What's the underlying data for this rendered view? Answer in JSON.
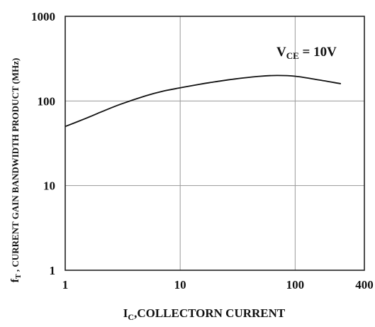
{
  "chart_data": {
    "type": "line",
    "title": "",
    "xlabel": {
      "main": "I",
      "sub": "C",
      "rest": ",COLLECTORN CURRENT"
    },
    "ylabel": {
      "main": "f",
      "sub": "T",
      "rest": " , CURRENT GAIN BANDWIDTH PRODUCT  (MHz)"
    },
    "xscale": "log",
    "yscale": "log",
    "xlim": [
      1,
      400
    ],
    "ylim": [
      1,
      1000
    ],
    "xticks": [
      1,
      10,
      100,
      400
    ],
    "xtick_labels": [
      "1",
      "10",
      "100",
      "400"
    ],
    "yticks": [
      1,
      10,
      100,
      1000
    ],
    "ytick_labels": [
      "1",
      "10",
      "100",
      "1000"
    ],
    "grid": true,
    "annotation": {
      "main": "V",
      "sub": "CE",
      "rest": " = 10V"
    },
    "series": [
      {
        "x": [
          1,
          1.5,
          2,
          3,
          5,
          7,
          10,
          15,
          20,
          30,
          50,
          70,
          100,
          150,
          250
        ],
        "y": [
          50,
          62,
          73,
          91,
          115,
          130,
          143,
          158,
          168,
          182,
          196,
          200,
          196,
          180,
          160
        ]
      }
    ]
  }
}
